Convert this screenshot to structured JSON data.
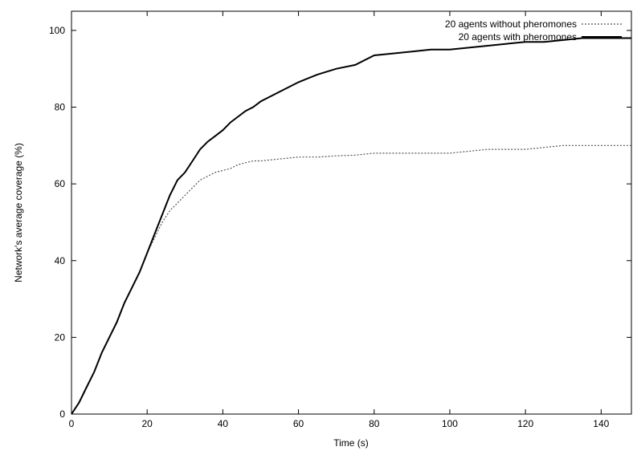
{
  "chart_data": {
    "type": "line",
    "title": "",
    "xlabel": "Time (s)",
    "ylabel": "Network's average coverage (%)",
    "xlim": [
      0,
      148
    ],
    "ylim": [
      0,
      105
    ],
    "xticks": [
      0,
      20,
      40,
      60,
      80,
      100,
      120,
      140
    ],
    "yticks": [
      0,
      20,
      40,
      60,
      80,
      100
    ],
    "grid": false,
    "legend_position": "top-right",
    "series": [
      {
        "name": "20 agents without pheromones",
        "style": "dotted",
        "color": "#555555",
        "x": [
          0,
          2,
          4,
          6,
          8,
          10,
          12,
          14,
          16,
          18,
          20,
          22,
          24,
          26,
          28,
          30,
          32,
          34,
          36,
          38,
          40,
          42,
          44,
          46,
          48,
          50,
          55,
          60,
          65,
          70,
          75,
          80,
          85,
          90,
          95,
          100,
          105,
          110,
          115,
          120,
          125,
          130,
          135,
          140,
          148
        ],
        "y": [
          0,
          3,
          7,
          11,
          16,
          20,
          24,
          29,
          33,
          37,
          42,
          46,
          50,
          53,
          55,
          57,
          59,
          61,
          62,
          63,
          63.5,
          64,
          65,
          65.5,
          66,
          66,
          66.5,
          67,
          67,
          67.3,
          67.5,
          68,
          68,
          68,
          68,
          68,
          68.5,
          69,
          69,
          69,
          69.5,
          70,
          70,
          70,
          70
        ]
      },
      {
        "name": "20 agents with pheromones",
        "style": "solid",
        "color": "#000000",
        "x": [
          0,
          2,
          4,
          6,
          8,
          10,
          12,
          14,
          16,
          18,
          20,
          22,
          24,
          26,
          28,
          30,
          32,
          34,
          36,
          38,
          40,
          42,
          44,
          46,
          48,
          50,
          55,
          60,
          65,
          70,
          75,
          80,
          85,
          90,
          95,
          100,
          105,
          110,
          115,
          120,
          125,
          130,
          135,
          140,
          148
        ],
        "y": [
          0,
          3,
          7,
          11,
          16,
          20,
          24,
          29,
          33,
          37,
          42,
          47,
          52,
          57,
          61,
          63,
          66,
          69,
          71,
          72.5,
          74,
          76,
          77.5,
          79,
          80,
          81.5,
          84,
          86.5,
          88.5,
          90,
          91,
          93.5,
          94,
          94.5,
          95,
          95,
          95.5,
          96,
          96.5,
          97,
          97,
          97.5,
          98,
          98,
          98
        ]
      }
    ]
  }
}
